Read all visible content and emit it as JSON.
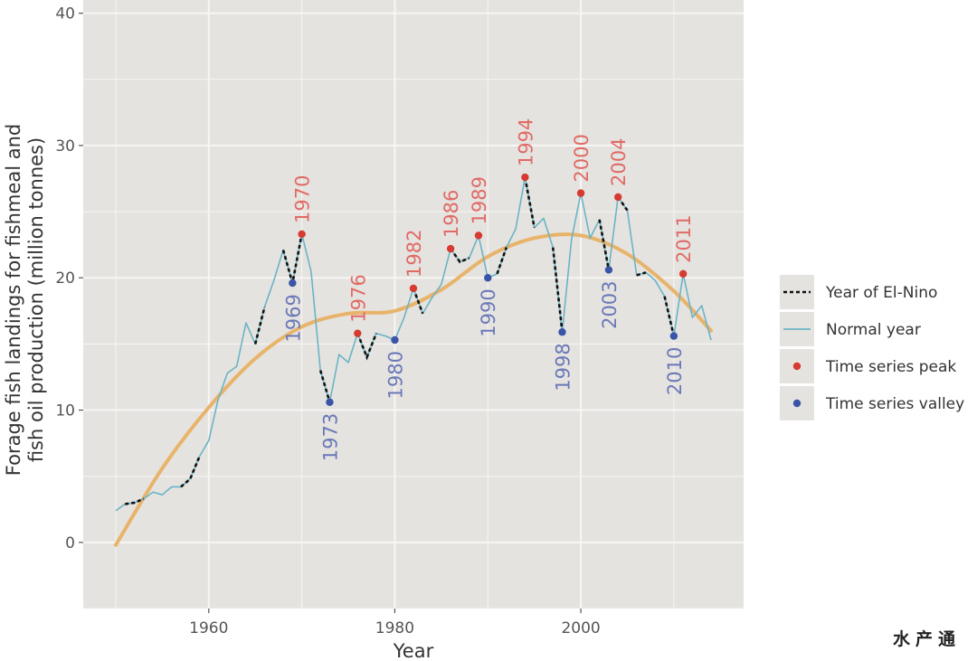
{
  "watermark": "水产通",
  "chart_data": {
    "type": "line",
    "title": "",
    "xlabel": "Year",
    "ylabel": [
      "Forage fish landings for fishmeal and",
      "fish oil production (million tonnes)"
    ],
    "xlim": [
      1946.5,
      2017.5
    ],
    "ylim": [
      -5,
      41
    ],
    "xticks": [
      1960,
      1980,
      2000
    ],
    "yticks": [
      0,
      10,
      20,
      30,
      40
    ],
    "grid": true,
    "legend_position": "right",
    "colors": {
      "panel": "#e5e3df",
      "grid": "#f7f6f4",
      "el_nino": "#111111",
      "normal": "#6ab4c6",
      "trend": "#e8b36a",
      "peak": "#d63a30",
      "valley": "#3a55a8",
      "peak_label": "#e06a66",
      "valley_label": "#6a78b8"
    },
    "legend": [
      {
        "label": "Year of El-Nino",
        "style": "el-nino"
      },
      {
        "label": "Normal year",
        "style": "normal"
      },
      {
        "label": "Time series peak",
        "style": "peak"
      },
      {
        "label": "Time series valley",
        "style": "valley"
      }
    ],
    "series": [
      {
        "name": "Forage fish landings",
        "x": [
          1950,
          1951,
          1952,
          1953,
          1954,
          1955,
          1956,
          1957,
          1958,
          1959,
          1960,
          1961,
          1962,
          1963,
          1964,
          1965,
          1966,
          1967,
          1968,
          1969,
          1970,
          1971,
          1972,
          1973,
          1974,
          1975,
          1976,
          1977,
          1978,
          1979,
          1980,
          1981,
          1982,
          1983,
          1984,
          1985,
          1986,
          1987,
          1988,
          1989,
          1990,
          1991,
          1992,
          1993,
          1994,
          1995,
          1996,
          1997,
          1998,
          1999,
          2000,
          2001,
          2002,
          2003,
          2004,
          2005,
          2006,
          2007,
          2008,
          2009,
          2010,
          2011,
          2012,
          2013,
          2014
        ],
        "y": [
          2.4,
          2.9,
          3.0,
          3.3,
          3.8,
          3.6,
          4.2,
          4.2,
          4.8,
          6.5,
          7.7,
          10.8,
          12.8,
          13.3,
          16.6,
          15.0,
          17.8,
          19.8,
          22.1,
          19.6,
          23.3,
          20.5,
          13.0,
          10.6,
          14.2,
          13.6,
          15.8,
          14.0,
          15.8,
          15.6,
          15.3,
          17.0,
          19.2,
          17.3,
          18.5,
          19.5,
          22.2,
          21.2,
          21.5,
          23.2,
          20.0,
          20.3,
          22.3,
          23.7,
          27.6,
          23.8,
          24.5,
          22.3,
          15.9,
          22.9,
          26.4,
          23.0,
          24.4,
          20.6,
          26.1,
          25.1,
          20.2,
          20.4,
          19.8,
          18.6,
          15.6,
          20.3,
          17.0,
          17.9,
          15.3
        ],
        "el_nino_segments": [
          [
            1951,
            1953
          ],
          [
            1957,
            1959
          ],
          [
            1965,
            1966
          ],
          [
            1968,
            1970
          ],
          [
            1972,
            1973
          ],
          [
            1976,
            1978
          ],
          [
            1982,
            1983
          ],
          [
            1986,
            1988
          ],
          [
            1991,
            1992
          ],
          [
            1994,
            1995
          ],
          [
            1997,
            1998
          ],
          [
            2002,
            2003
          ],
          [
            2004,
            2005
          ],
          [
            2006,
            2007
          ],
          [
            2009,
            2010
          ]
        ]
      },
      {
        "name": "Trend",
        "x": [
          1950,
          1955,
          1960,
          1965,
          1970,
          1975,
          1980,
          1985,
          1990,
          1995,
          2000,
          2005,
          2010,
          2014
        ],
        "y": [
          -0.2,
          5.6,
          10.2,
          13.9,
          16.3,
          17.3,
          17.5,
          19.1,
          21.6,
          23.0,
          23.2,
          21.8,
          19.0,
          16.0
        ]
      }
    ],
    "peaks": [
      {
        "year": 1970,
        "value": 23.3,
        "label": "1970"
      },
      {
        "year": 1976,
        "value": 15.8,
        "label": "1976"
      },
      {
        "year": 1982,
        "value": 19.2,
        "label": "1982"
      },
      {
        "year": 1986,
        "value": 22.2,
        "label": "1986"
      },
      {
        "year": 1989,
        "value": 23.2,
        "label": "1989"
      },
      {
        "year": 1994,
        "value": 27.6,
        "label": "1994"
      },
      {
        "year": 2000,
        "value": 26.4,
        "label": "2000"
      },
      {
        "year": 2004,
        "value": 26.1,
        "label": "2004"
      },
      {
        "year": 2011,
        "value": 20.3,
        "label": "2011"
      }
    ],
    "valleys": [
      {
        "year": 1969,
        "value": 19.6,
        "label": "1969"
      },
      {
        "year": 1973,
        "value": 10.6,
        "label": "1973"
      },
      {
        "year": 1980,
        "value": 15.3,
        "label": "1980"
      },
      {
        "year": 1990,
        "value": 20.0,
        "label": "1990"
      },
      {
        "year": 1998,
        "value": 15.9,
        "label": "1998"
      },
      {
        "year": 2003,
        "value": 20.6,
        "label": "2003"
      },
      {
        "year": 2010,
        "value": 15.6,
        "label": "2010"
      }
    ]
  }
}
